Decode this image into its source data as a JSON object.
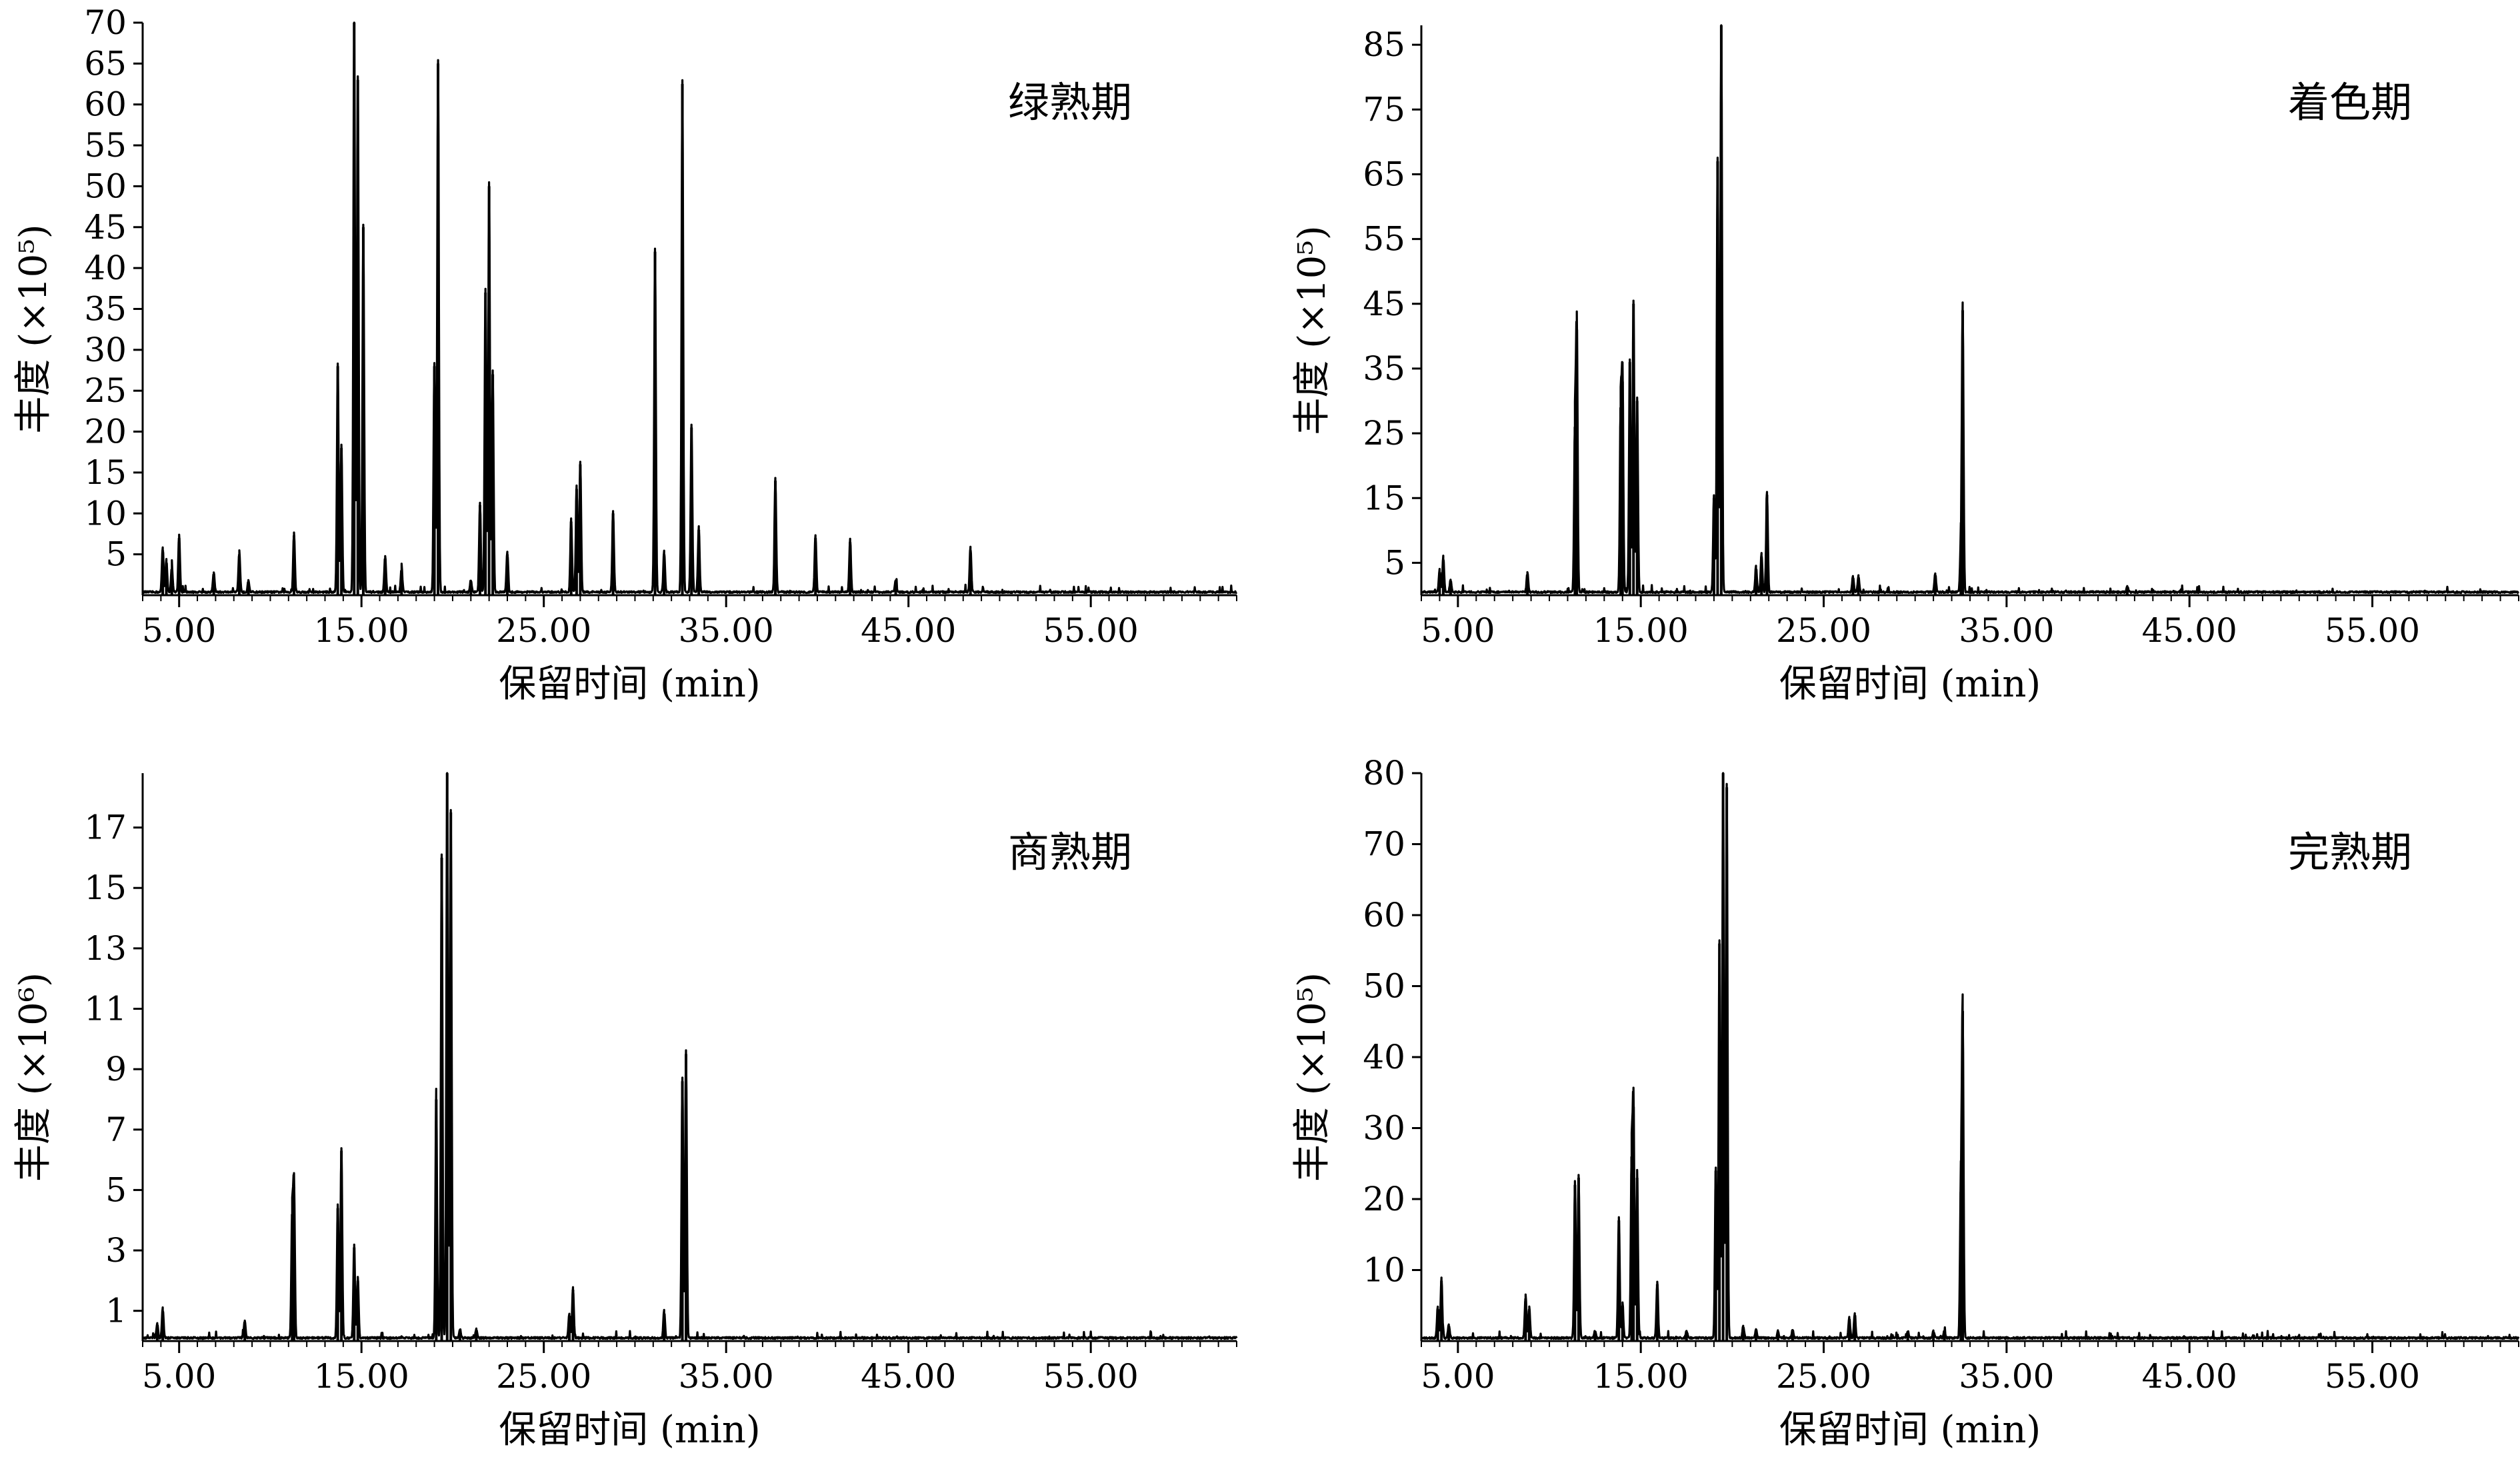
{
  "figure": {
    "x_title": "保留时间 (min)",
    "x_ticks": [
      "5.00",
      "15.00",
      "25.00",
      "35.00",
      "45.00",
      "55.00"
    ],
    "line_color": "#000000"
  },
  "chart_data": [
    {
      "type": "line",
      "title": "绿熟期",
      "xlabel": "保留时间 (min)",
      "ylabel": "丰度 (×10⁵)",
      "xlim": [
        3.0,
        63.0
      ],
      "ylim": [
        0,
        70
      ],
      "x_ticks": [
        5,
        15,
        25,
        35,
        45,
        55
      ],
      "y_ticks": [
        5,
        10,
        15,
        20,
        25,
        30,
        35,
        40,
        45,
        50,
        55,
        60,
        65,
        70
      ],
      "y_tick_labels": [
        "5",
        "10",
        "15",
        "20",
        "25",
        "30",
        "35",
        "40",
        "45",
        "50",
        "55",
        "60",
        "65",
        "70"
      ],
      "peaks": [
        [
          4.1,
          5.5
        ],
        [
          4.3,
          4.0
        ],
        [
          4.6,
          3.2
        ],
        [
          5.0,
          7.0
        ],
        [
          6.9,
          2.5
        ],
        [
          8.3,
          5.0
        ],
        [
          8.8,
          1.5
        ],
        [
          11.3,
          7.3
        ],
        [
          13.7,
          28.0
        ],
        [
          13.9,
          18.0
        ],
        [
          14.6,
          70.0
        ],
        [
          14.8,
          63.0
        ],
        [
          15.1,
          45.0
        ],
        [
          16.3,
          4.5
        ],
        [
          17.2,
          3.0
        ],
        [
          19.2,
          65.0
        ],
        [
          19.0,
          28.0
        ],
        [
          21.0,
          1.5
        ],
        [
          21.5,
          11.0
        ],
        [
          21.8,
          37.0
        ],
        [
          22.0,
          50.0
        ],
        [
          22.2,
          27.0
        ],
        [
          23.0,
          5.0
        ],
        [
          26.5,
          9.0
        ],
        [
          26.8,
          13.0
        ],
        [
          27.0,
          16.0
        ],
        [
          28.8,
          10.0
        ],
        [
          31.1,
          42.0
        ],
        [
          31.6,
          5.0
        ],
        [
          32.6,
          62.5
        ],
        [
          33.1,
          20.5
        ],
        [
          33.5,
          8.0
        ],
        [
          37.7,
          14.0
        ],
        [
          39.9,
          7.0
        ],
        [
          41.8,
          6.5
        ],
        [
          44.3,
          1.5
        ],
        [
          48.4,
          5.5
        ]
      ]
    },
    {
      "type": "line",
      "title": "着色期",
      "xlabel": "保留时间 (min)",
      "ylabel": "丰度 (×10⁵)",
      "xlim": [
        3.0,
        63.0
      ],
      "ylim": [
        0,
        88
      ],
      "x_ticks": [
        5,
        15,
        25,
        35,
        45,
        55
      ],
      "y_ticks": [
        5,
        15,
        25,
        35,
        45,
        55,
        65,
        75,
        85
      ],
      "y_tick_labels": [
        "5",
        "15",
        "25",
        "35",
        "45",
        "55",
        "65",
        "75",
        "85"
      ],
      "peaks": [
        [
          4.0,
          3.5
        ],
        [
          4.2,
          5.5
        ],
        [
          4.6,
          2.0
        ],
        [
          8.8,
          3.0
        ],
        [
          11.5,
          41.0
        ],
        [
          11.4,
          26.0
        ],
        [
          14.0,
          33.0
        ],
        [
          13.9,
          29.0
        ],
        [
          14.6,
          45.0
        ],
        [
          14.4,
          36.0
        ],
        [
          14.8,
          30.0
        ],
        [
          19.0,
          15.0
        ],
        [
          19.2,
          67.0
        ],
        [
          19.4,
          88.0
        ],
        [
          21.3,
          4.0
        ],
        [
          21.6,
          6.0
        ],
        [
          21.9,
          15.5
        ],
        [
          26.6,
          2.5
        ],
        [
          26.9,
          2.5
        ],
        [
          31.1,
          3.0
        ],
        [
          32.5,
          7.0
        ],
        [
          32.6,
          44.0
        ],
        [
          41.6,
          1.0
        ]
      ]
    },
    {
      "type": "line",
      "title": "商熟期",
      "xlabel": "保留时间 (min)",
      "ylabel": "丰度 (×10⁶)",
      "xlim": [
        3.0,
        63.0
      ],
      "ylim": [
        0,
        18.8
      ],
      "x_ticks": [
        5,
        15,
        25,
        35,
        45,
        55
      ],
      "y_ticks": [
        1,
        3,
        5,
        7,
        9,
        11,
        13,
        15,
        17
      ],
      "y_tick_labels": [
        "1",
        "3",
        "5",
        "7",
        "9",
        "11",
        "13",
        "15",
        "17"
      ],
      "peaks": [
        [
          3.8,
          0.5
        ],
        [
          4.1,
          1.0
        ],
        [
          8.6,
          0.6
        ],
        [
          11.3,
          5.1
        ],
        [
          11.2,
          4.2
        ],
        [
          13.9,
          6.3
        ],
        [
          13.7,
          4.4
        ],
        [
          14.6,
          3.1
        ],
        [
          14.8,
          2.0
        ],
        [
          19.1,
          8.0
        ],
        [
          19.4,
          16.0
        ],
        [
          19.7,
          18.8
        ],
        [
          19.9,
          17.5
        ],
        [
          20.4,
          0.3
        ],
        [
          21.3,
          0.3
        ],
        [
          26.4,
          0.8
        ],
        [
          26.6,
          1.7
        ],
        [
          31.6,
          0.9
        ],
        [
          32.6,
          8.6
        ],
        [
          32.8,
          9.5
        ]
      ]
    },
    {
      "type": "line",
      "title": "完熟期",
      "xlabel": "保留时间 (min)",
      "ylabel": "丰度 (×10⁵)",
      "xlim": [
        3.0,
        63.0
      ],
      "ylim": [
        0,
        80
      ],
      "x_ticks": [
        5,
        15,
        25,
        35,
        45,
        55
      ],
      "y_ticks": [
        10,
        20,
        30,
        40,
        50,
        60,
        70,
        80
      ],
      "y_tick_labels": [
        "10",
        "20",
        "30",
        "40",
        "50",
        "60",
        "70",
        "80"
      ],
      "peaks": [
        [
          3.9,
          4.5
        ],
        [
          4.1,
          8.5
        ],
        [
          4.5,
          2.0
        ],
        [
          8.7,
          6.0
        ],
        [
          8.9,
          4.5
        ],
        [
          11.4,
          22.0
        ],
        [
          11.6,
          23.0
        ],
        [
          12.5,
          1.0
        ],
        [
          13.8,
          17.0
        ],
        [
          14.0,
          5.0
        ],
        [
          14.5,
          26.0
        ],
        [
          14.6,
          33.0
        ],
        [
          14.8,
          23.0
        ],
        [
          15.9,
          8.0
        ],
        [
          17.5,
          1.0
        ],
        [
          19.1,
          24.0
        ],
        [
          19.3,
          56.0
        ],
        [
          19.5,
          80.0
        ],
        [
          19.7,
          78.0
        ],
        [
          20.6,
          1.8
        ],
        [
          21.3,
          1.2
        ],
        [
          22.5,
          1.0
        ],
        [
          23.3,
          1.2
        ],
        [
          26.4,
          3.0
        ],
        [
          26.7,
          3.5
        ],
        [
          29.6,
          1.0
        ],
        [
          31.0,
          1.0
        ],
        [
          31.6,
          1.0
        ],
        [
          32.5,
          21.0
        ],
        [
          32.6,
          46.5
        ]
      ]
    }
  ]
}
